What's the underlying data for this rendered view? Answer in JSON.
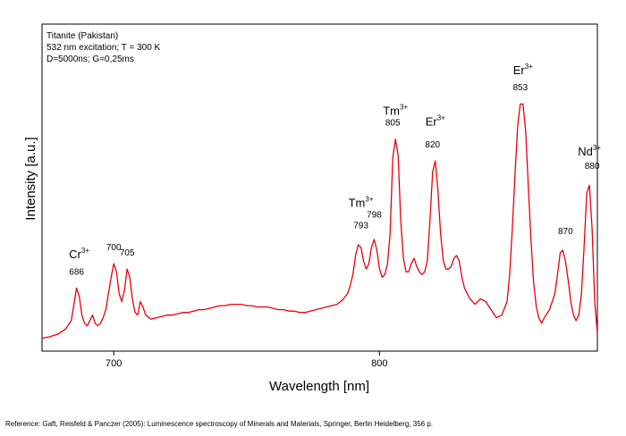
{
  "chart_data": {
    "type": "line",
    "xlabel": "Wavelength [nm]",
    "ylabel": "Intensity [a.u.]",
    "xlim": [
      673,
      882
    ],
    "ylim": [
      0,
      100
    ],
    "xticks": [
      700,
      800
    ],
    "xtick_labels": [
      "700",
      "800"
    ],
    "grid": false,
    "info_lines": [
      "Titanite (Pakistan)",
      "532 nm excitation; T = 300 K",
      "D=5000ns; G=0,25ms"
    ],
    "ions": [
      {
        "base": "Cr",
        "sup": "3+",
        "x": 687,
        "y": 31
      },
      {
        "base": "Tm",
        "sup": "3+",
        "x": 793,
        "y": 50
      },
      {
        "base": "Tm",
        "sup": "3+",
        "x": 806,
        "y": 84
      },
      {
        "base": "Er",
        "sup": "3+",
        "x": 821,
        "y": 80
      },
      {
        "base": "Er",
        "sup": "3+",
        "x": 854,
        "y": 99
      },
      {
        "base": "Nd",
        "sup": "3+",
        "x": 879,
        "y": 69
      }
    ],
    "peak_labels": [
      {
        "text": "686",
        "x": 686,
        "y": 25
      },
      {
        "text": "700",
        "x": 700,
        "y": 34
      },
      {
        "text": "705",
        "x": 705,
        "y": 32
      },
      {
        "text": "793",
        "x": 793,
        "y": 42
      },
      {
        "text": "798",
        "x": 798,
        "y": 46
      },
      {
        "text": "805",
        "x": 805,
        "y": 80
      },
      {
        "text": "820",
        "x": 820,
        "y": 72
      },
      {
        "text": "853",
        "x": 853,
        "y": 93
      },
      {
        "text": "870",
        "x": 870,
        "y": 40
      },
      {
        "text": "880",
        "x": 880,
        "y": 64
      }
    ],
    "series": [
      {
        "color": "#e8000a",
        "x": [
          673,
          676,
          679,
          682,
          684,
          685,
          686,
          687,
          688,
          689,
          690,
          691,
          692,
          693,
          694,
          695,
          696,
          697,
          698,
          699,
          700,
          701,
          702,
          703,
          704,
          705,
          706,
          707,
          708,
          709,
          710,
          711,
          712,
          714,
          716,
          718,
          720,
          722,
          724,
          726,
          728,
          730,
          732,
          734,
          736,
          738,
          740,
          742,
          744,
          746,
          748,
          750,
          752,
          754,
          756,
          758,
          760,
          762,
          764,
          766,
          768,
          770,
          772,
          774,
          776,
          778,
          780,
          782,
          784,
          786,
          788,
          789,
          790,
          791,
          792,
          793,
          794,
          795,
          796,
          797,
          798,
          799,
          800,
          801,
          802,
          803,
          804,
          805,
          806,
          807,
          808,
          809,
          810,
          811,
          812,
          813,
          814,
          815,
          816,
          817,
          818,
          819,
          820,
          821,
          822,
          823,
          824,
          825,
          826,
          827,
          828,
          829,
          830,
          831,
          832,
          833,
          834,
          836,
          838,
          840,
          842,
          844,
          846,
          848,
          849,
          850,
          851,
          852,
          853,
          854,
          855,
          856,
          857,
          858,
          859,
          860,
          861,
          862,
          864,
          866,
          867,
          868,
          869,
          870,
          871,
          872,
          873,
          874,
          875,
          876,
          877,
          878,
          879,
          880,
          881,
          882
        ],
        "y": [
          1.5,
          2,
          3,
          5,
          8,
          14,
          20,
          17,
          10,
          7,
          6,
          8,
          10,
          7,
          6,
          7,
          9,
          12,
          18,
          24,
          29,
          26,
          18,
          15,
          19,
          27,
          24,
          16,
          11,
          10,
          15,
          13,
          10,
          8.5,
          9,
          9.5,
          10,
          10,
          10.5,
          11,
          11,
          11.5,
          12,
          12,
          12.5,
          13,
          13.5,
          13.5,
          14,
          14,
          14,
          13.5,
          13.5,
          13,
          13,
          13,
          12.5,
          12,
          12,
          11.5,
          11.5,
          11,
          11,
          11.5,
          12,
          12.5,
          13,
          13.5,
          14,
          15.5,
          18,
          21,
          25,
          32,
          36,
          35,
          30,
          27,
          29,
          35,
          38,
          34,
          27,
          24,
          25,
          29,
          40,
          68,
          75,
          69,
          45,
          31,
          26,
          26,
          29,
          31,
          28,
          26,
          25,
          26,
          30,
          45,
          63,
          67,
          56,
          40,
          30,
          27,
          27,
          28,
          31,
          32,
          30,
          24,
          20,
          18,
          16,
          14,
          16,
          15,
          12,
          9,
          10,
          15,
          25,
          42,
          62,
          80,
          88,
          88,
          78,
          58,
          38,
          22,
          13,
          9,
          7,
          9,
          12,
          18,
          25,
          33,
          34,
          30,
          23,
          15,
          10,
          8,
          10,
          18,
          35,
          55,
          58,
          42,
          15,
          3
        ]
      }
    ]
  },
  "reference": "Reference: Gaft, Reisfeld & Panczer (2005): Luminescence spectroscopy of Minerals and Materials, Springer, Berlin Heidelberg, 356 p."
}
